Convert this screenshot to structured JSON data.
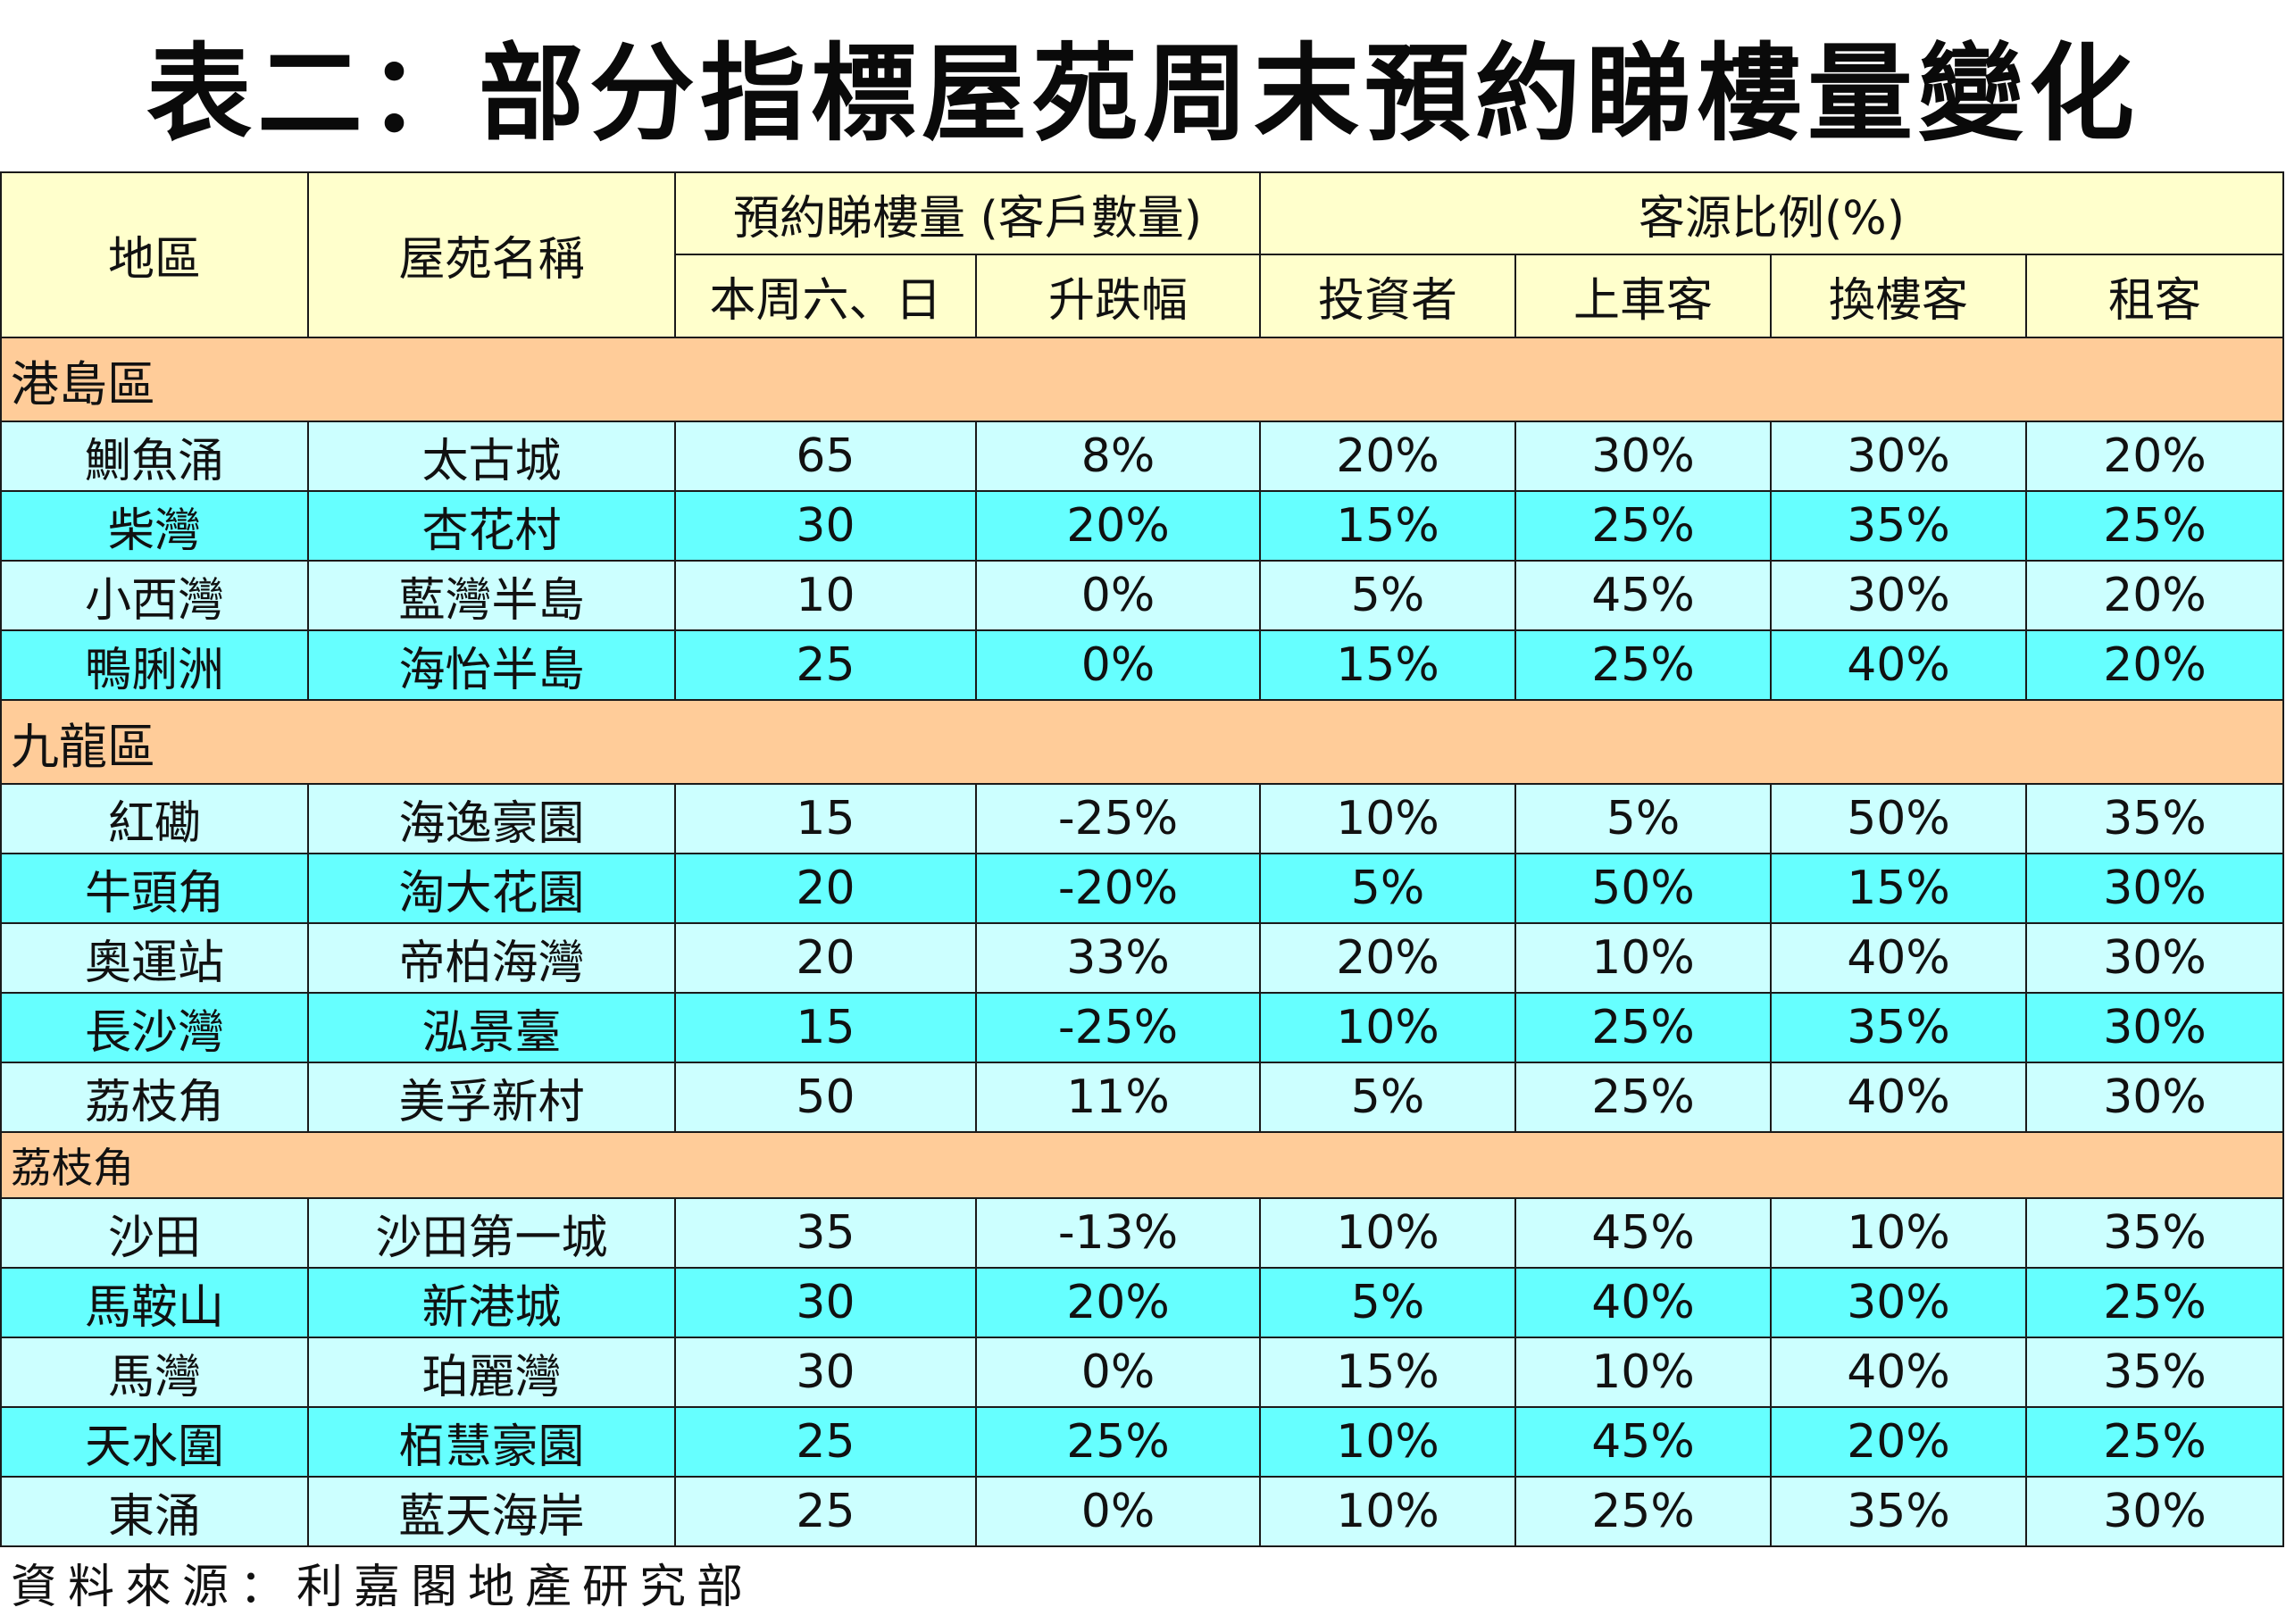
{
  "title": "表二：部分指標屋苑周末預約睇樓量變化",
  "headers": {
    "district": "地區",
    "estate": "屋苑名稱",
    "bookings_group": "預約睇樓量 (客戶數量)",
    "weekend": "本周六、日",
    "change": "升跌幅",
    "source_group": "客源比例(%)",
    "investor": "投資者",
    "first_buyer": "上車客",
    "upgrader": "換樓客",
    "tenant": "租客"
  },
  "sections": [
    {
      "name": "港島區",
      "rows": [
        {
          "district": "鰂魚涌",
          "estate": "太古城",
          "weekend": "65",
          "change": "8%",
          "investor": "20%",
          "first_buyer": "30%",
          "upgrader": "30%",
          "tenant": "20%"
        },
        {
          "district": "柴灣",
          "estate": "杏花村",
          "weekend": "30",
          "change": "20%",
          "investor": "15%",
          "first_buyer": "25%",
          "upgrader": "35%",
          "tenant": "25%"
        },
        {
          "district": "小西灣",
          "estate": "藍灣半島",
          "weekend": "10",
          "change": "0%",
          "investor": "5%",
          "first_buyer": "45%",
          "upgrader": "30%",
          "tenant": "20%"
        },
        {
          "district": "鴨脷洲",
          "estate": "海怡半島",
          "weekend": "25",
          "change": "0%",
          "investor": "15%",
          "first_buyer": "25%",
          "upgrader": "40%",
          "tenant": "20%"
        }
      ]
    },
    {
      "name": "九龍區",
      "rows": [
        {
          "district": "紅磡",
          "estate": "海逸豪園",
          "weekend": "15",
          "change": "-25%",
          "investor": "10%",
          "first_buyer": "5%",
          "upgrader": "50%",
          "tenant": "35%"
        },
        {
          "district": "牛頭角",
          "estate": "淘大花園",
          "weekend": "20",
          "change": "-20%",
          "investor": "5%",
          "first_buyer": "50%",
          "upgrader": "15%",
          "tenant": "30%"
        },
        {
          "district": "奧運站",
          "estate": "帝柏海灣",
          "weekend": "20",
          "change": "33%",
          "investor": "20%",
          "first_buyer": "10%",
          "upgrader": "40%",
          "tenant": "30%"
        },
        {
          "district": "長沙灣",
          "estate": "泓景臺",
          "weekend": "15",
          "change": "-25%",
          "investor": "10%",
          "first_buyer": "25%",
          "upgrader": "35%",
          "tenant": "30%"
        },
        {
          "district": "荔枝角",
          "estate": "美孚新村",
          "weekend": "50",
          "change": "11%",
          "investor": "5%",
          "first_buyer": "25%",
          "upgrader": "40%",
          "tenant": "30%"
        }
      ]
    },
    {
      "name": "荔枝角",
      "rows": [
        {
          "district": "沙田",
          "estate": "沙田第一城",
          "weekend": "35",
          "change": "-13%",
          "investor": "10%",
          "first_buyer": "45%",
          "upgrader": "10%",
          "tenant": "35%"
        },
        {
          "district": "馬鞍山",
          "estate": "新港城",
          "weekend": "30",
          "change": "20%",
          "investor": "5%",
          "first_buyer": "40%",
          "upgrader": "30%",
          "tenant": "25%"
        },
        {
          "district": "馬灣",
          "estate": "珀麗灣",
          "weekend": "30",
          "change": "0%",
          "investor": "15%",
          "first_buyer": "10%",
          "upgrader": "40%",
          "tenant": "35%"
        },
        {
          "district": "天水圍",
          "estate": "栢慧豪園",
          "weekend": "25",
          "change": "25%",
          "investor": "10%",
          "first_buyer": "45%",
          "upgrader": "20%",
          "tenant": "25%"
        },
        {
          "district": "東涌",
          "estate": "藍天海岸",
          "weekend": "25",
          "change": "0%",
          "investor": "10%",
          "first_buyer": "25%",
          "upgrader": "35%",
          "tenant": "30%"
        }
      ]
    }
  ],
  "source": "資料來源：利嘉閣地產研究部",
  "colors": {
    "header_bg": "#ffffcc",
    "section_bg": "#ffcc99",
    "row_light": "#ccffff",
    "row_dark": "#66ffff",
    "border": "#1a1a1a"
  }
}
